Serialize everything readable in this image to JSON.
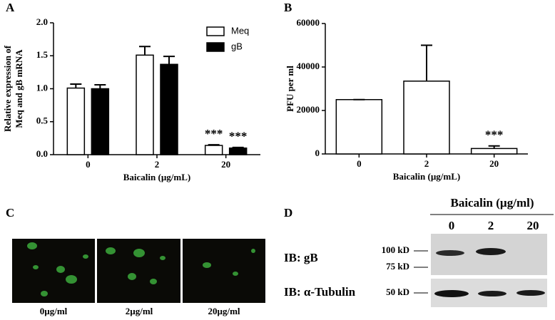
{
  "chart_data": [
    {
      "type": "bar",
      "label": "A",
      "ylabel": [
        "Relative expression of",
        "Meq and gB mRNA"
      ],
      "xlabel": "Baicalin (µg/mL)",
      "categories": [
        "0",
        "2",
        "20"
      ],
      "series": [
        {
          "name": "Meq",
          "color": "#ffffff",
          "values": [
            1.01,
            1.51,
            0.14
          ],
          "errors": [
            0.06,
            0.13,
            0.01
          ]
        },
        {
          "name": "gB",
          "color": "#000000",
          "values": [
            1.0,
            1.37,
            0.1
          ],
          "errors": [
            0.06,
            0.12,
            0.01
          ]
        }
      ],
      "annotations": [
        "***",
        "***"
      ],
      "ylim": [
        0,
        2
      ],
      "yticks": [
        {
          "value": 0,
          "label": "0.0"
        },
        {
          "value": 0.5,
          "label": "0.5"
        },
        {
          "value": 1,
          "label": "1.0"
        },
        {
          "value": 1.5,
          "label": "1.5"
        },
        {
          "value": 2,
          "label": "2.0"
        }
      ]
    },
    {
      "type": "bar",
      "label": "B",
      "ylabel": [
        "PFU per ml"
      ],
      "xlabel": "Baicalin (µg/mL)",
      "categories": [
        "0",
        "2",
        "20"
      ],
      "values": [
        25000,
        33500,
        2500
      ],
      "errors": [
        0,
        16500,
        1200
      ],
      "color": "#ffffff",
      "annotations": [
        "***"
      ],
      "ylim": [
        0,
        60000
      ],
      "yticks": [
        0,
        20000,
        40000,
        60000
      ]
    }
  ],
  "panel_c": {
    "label": "C",
    "captions": [
      "0µg/ml",
      "2µg/ml",
      "20µg/ml"
    ]
  },
  "panel_d": {
    "label": "D",
    "header": "Baicalin (µg/ml)",
    "lanes": [
      "0",
      "2",
      "20"
    ],
    "rows": [
      "IB: gB",
      "IB: α-Tubulin"
    ],
    "markers": [
      "100 kD",
      "75 kD",
      "50 kD"
    ]
  }
}
